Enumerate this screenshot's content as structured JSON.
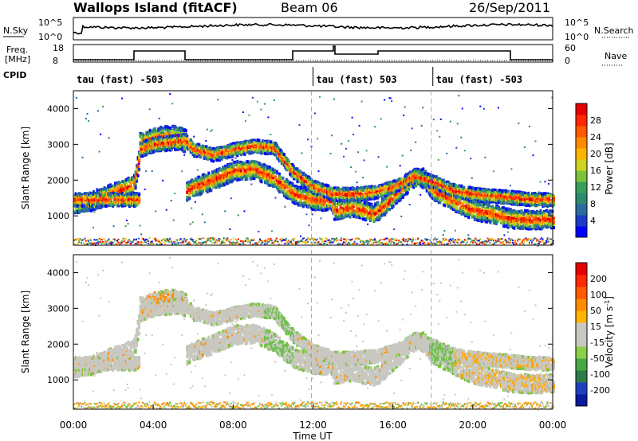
{
  "header": {
    "station": "Wallops Island (fitACF)",
    "beam": "Beam 06",
    "date": "26/Sep/2011"
  },
  "top_panels": {
    "nsky_label": "N.Sky",
    "nsky_ticks": [
      "10^5",
      "10^0"
    ],
    "nsearch_label": "N.Search",
    "nsearch_ticks": [
      "10^5",
      "10^0"
    ],
    "freq_label_line1": "Freq.",
    "freq_label_line2": "[MHz]",
    "freq_ticks": [
      "18",
      "8"
    ],
    "nave_label": "Nave",
    "nave_ticks": [
      "60",
      "0"
    ],
    "cpid_label": "CPID"
  },
  "cpid_segments": [
    {
      "start_hour": 0,
      "label": "tau (fast) -503"
    },
    {
      "start_hour": 12,
      "label": "tau (fast) 503"
    },
    {
      "start_hour": 18,
      "label": "tau (fast) -503"
    }
  ],
  "colorbars": {
    "power": {
      "title": "Power [dB]",
      "ticks": [
        "28",
        "24",
        "20",
        "16",
        "12",
        "8",
        "4"
      ],
      "colors": [
        "#0000ff",
        "#1a3cc8",
        "#2a6aa0",
        "#2e8a6e",
        "#37a05a",
        "#7cc23c",
        "#cfd21e",
        "#ffb400",
        "#ff8c00",
        "#ff5a00",
        "#ff2800",
        "#e60000"
      ]
    },
    "velocity": {
      "title": "Velocity [m s",
      "title_sup": "-1",
      "title_end": "]",
      "ticks": [
        "200",
        "100",
        "50",
        "15",
        "-15",
        "-50",
        "-100",
        "-200"
      ],
      "colors": [
        "#0a1aa0",
        "#1f3fc0",
        "#2a7a4a",
        "#46a844",
        "#8ad04a",
        "#c8c8c0",
        "#c8c8c0",
        "#ffb400",
        "#ff8c00",
        "#ff5a00",
        "#ff2a00",
        "#e60000"
      ]
    }
  },
  "chart_data": [
    {
      "type": "heatmap",
      "name": "power",
      "ylabel": "Slant Range [km]",
      "yticks": [
        1000,
        2000,
        3000,
        4000
      ],
      "ylim": [
        180,
        4500
      ],
      "xlim": [
        0,
        24
      ],
      "ridges": [
        {
          "band": "main",
          "points": [
            [
              0,
              1320
            ],
            [
              1,
              1420
            ],
            [
              2,
              1650
            ],
            [
              3,
              1870
            ],
            [
              3.3,
              2700
            ],
            [
              4,
              2840
            ],
            [
              5,
              2900
            ],
            [
              5.6,
              2950
            ],
            [
              5.6,
              1650
            ],
            [
              6,
              1800
            ],
            [
              7,
              2000
            ],
            [
              8,
              2250
            ],
            [
              9,
              2300
            ],
            [
              10,
              2050
            ],
            [
              11,
              1600
            ],
            [
              12,
              1430
            ],
            [
              12.9,
              1400
            ],
            [
              13,
              1150
            ],
            [
              14,
              1220
            ],
            [
              15,
              1050
            ],
            [
              15.6,
              1300
            ],
            [
              16,
              1550
            ],
            [
              17,
              2050
            ],
            [
              17.5,
              2050
            ],
            [
              18,
              1700
            ],
            [
              19,
              1400
            ],
            [
              20,
              1150
            ],
            [
              21,
              1050
            ],
            [
              21.6,
              950
            ],
            [
              22,
              900
            ],
            [
              23,
              880
            ],
            [
              24,
              900
            ]
          ]
        },
        {
          "band": "upper",
          "points": [
            [
              3.3,
              3000
            ],
            [
              4,
              3150
            ],
            [
              5,
              3200
            ],
            [
              5.6,
              3100
            ],
            [
              6,
              2850
            ],
            [
              7,
              2700
            ],
            [
              8,
              2850
            ],
            [
              9,
              2950
            ],
            [
              10,
              2900
            ],
            [
              11,
              2200
            ],
            [
              12,
              1800
            ],
            [
              13,
              1600
            ],
            [
              14,
              1600
            ],
            [
              15,
              1650
            ],
            [
              16,
              1800
            ],
            [
              17,
              2100
            ],
            [
              18,
              1950
            ],
            [
              19,
              1700
            ],
            [
              20,
              1600
            ],
            [
              21,
              1550
            ],
            [
              22,
              1500
            ],
            [
              23,
              1450
            ],
            [
              24,
              1450
            ]
          ]
        }
      ],
      "datagap_hours": [
        [
          3.3,
          5.6
        ]
      ]
    },
    {
      "type": "heatmap",
      "name": "velocity",
      "ylabel": "Slant Range [km]",
      "xlabel": "Time UT",
      "yticks": [
        1000,
        2000,
        3000,
        4000
      ],
      "xticks": [
        "00:00",
        "04:00",
        "08:00",
        "12:00",
        "16:00",
        "20:00",
        "00:00"
      ],
      "ylim": [
        180,
        4500
      ],
      "xlim": [
        0,
        24
      ]
    }
  ]
}
